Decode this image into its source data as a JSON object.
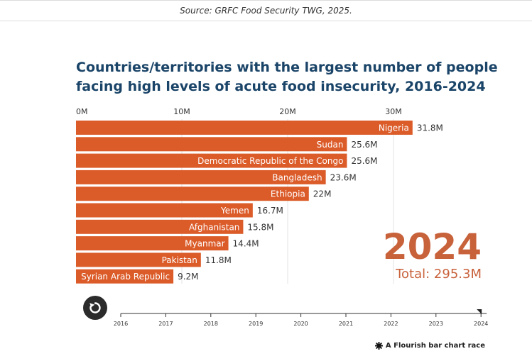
{
  "source": "Source: GRFC Food Security TWG, 2025.",
  "title": "Countries/territories with the largest number of people facing high levels of acute food insecurity, 2016-2024",
  "current_year": "2024",
  "total": "Total: 295.3M",
  "credit": "A Flourish bar chart race",
  "icons": {
    "replay": "replay-icon",
    "credit": "flourish-star-icon"
  },
  "colors": {
    "bar": "#db5b29",
    "title": "#1a4468",
    "year": "#c8623b",
    "gridline": "#e3e3e3"
  },
  "chart_data": {
    "type": "bar",
    "orientation": "horizontal",
    "title": "Countries/territories with the largest number of people facing high levels of acute food insecurity, 2016-2024",
    "categories": [
      "Nigeria",
      "Sudan",
      "Democratic Republic of the Congo",
      "Bangladesh",
      "Ethiopia",
      "Yemen",
      "Afghanistan",
      "Myanmar",
      "Pakistan",
      "Syrian Arab Republic"
    ],
    "values": [
      31.8,
      25.6,
      25.6,
      23.6,
      22,
      16.7,
      15.8,
      14.4,
      11.8,
      9.2
    ],
    "value_labels": [
      "31.8M",
      "25.6M",
      "25.6M",
      "23.6M",
      "22M",
      "16.7M",
      "15.8M",
      "14.4M",
      "11.8M",
      "9.2M"
    ],
    "xticks": [
      0,
      10,
      20,
      30
    ],
    "xtick_labels": [
      "0M",
      "10M",
      "20M",
      "30M"
    ],
    "xlim": [
      0,
      38.2
    ],
    "grid": true,
    "timeline_years": [
      "2016",
      "2017",
      "2018",
      "2019",
      "2020",
      "2021",
      "2022",
      "2023",
      "2024"
    ],
    "timeline_selected": "2024"
  }
}
